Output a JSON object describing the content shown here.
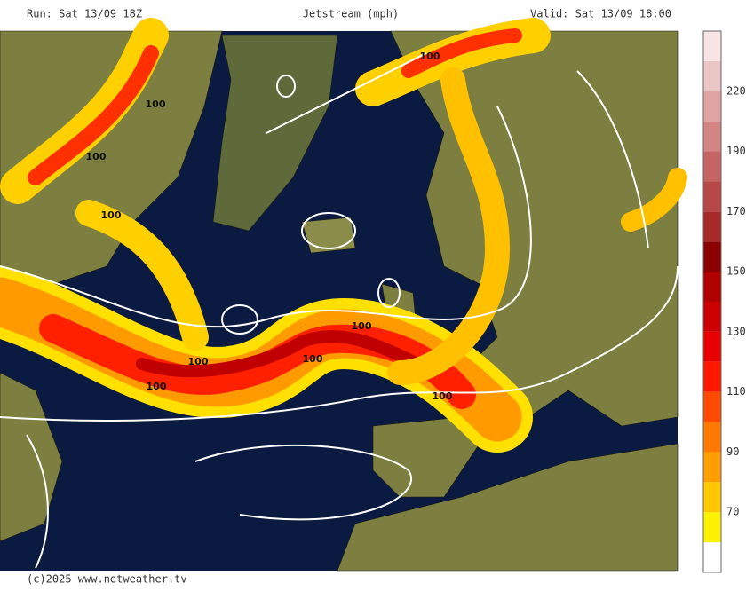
{
  "header": {
    "run": "Run: Sat 13/09 18Z",
    "title": "Jetstream (mph)",
    "valid": "Valid: Sat 13/09 18:00"
  },
  "footer": "(c)2025 www.netweather.tv",
  "colorbar": {
    "colors": [
      "#ffffff",
      "#fff200",
      "#ffc800",
      "#ff9e00",
      "#ff7800",
      "#ff4a00",
      "#ff1800",
      "#e80000",
      "#cc0000",
      "#b00000",
      "#8b0000",
      "#a82828",
      "#b84848",
      "#c66464",
      "#d48484",
      "#e0a4a4",
      "#ecc6c6",
      "#f8e4e4"
    ],
    "labels": [
      70,
      90,
      110,
      130,
      150,
      170,
      190,
      220
    ]
  },
  "contour_labels": [
    "100",
    "100",
    "100",
    "100",
    "100",
    "100",
    "100",
    "100",
    "100"
  ]
}
